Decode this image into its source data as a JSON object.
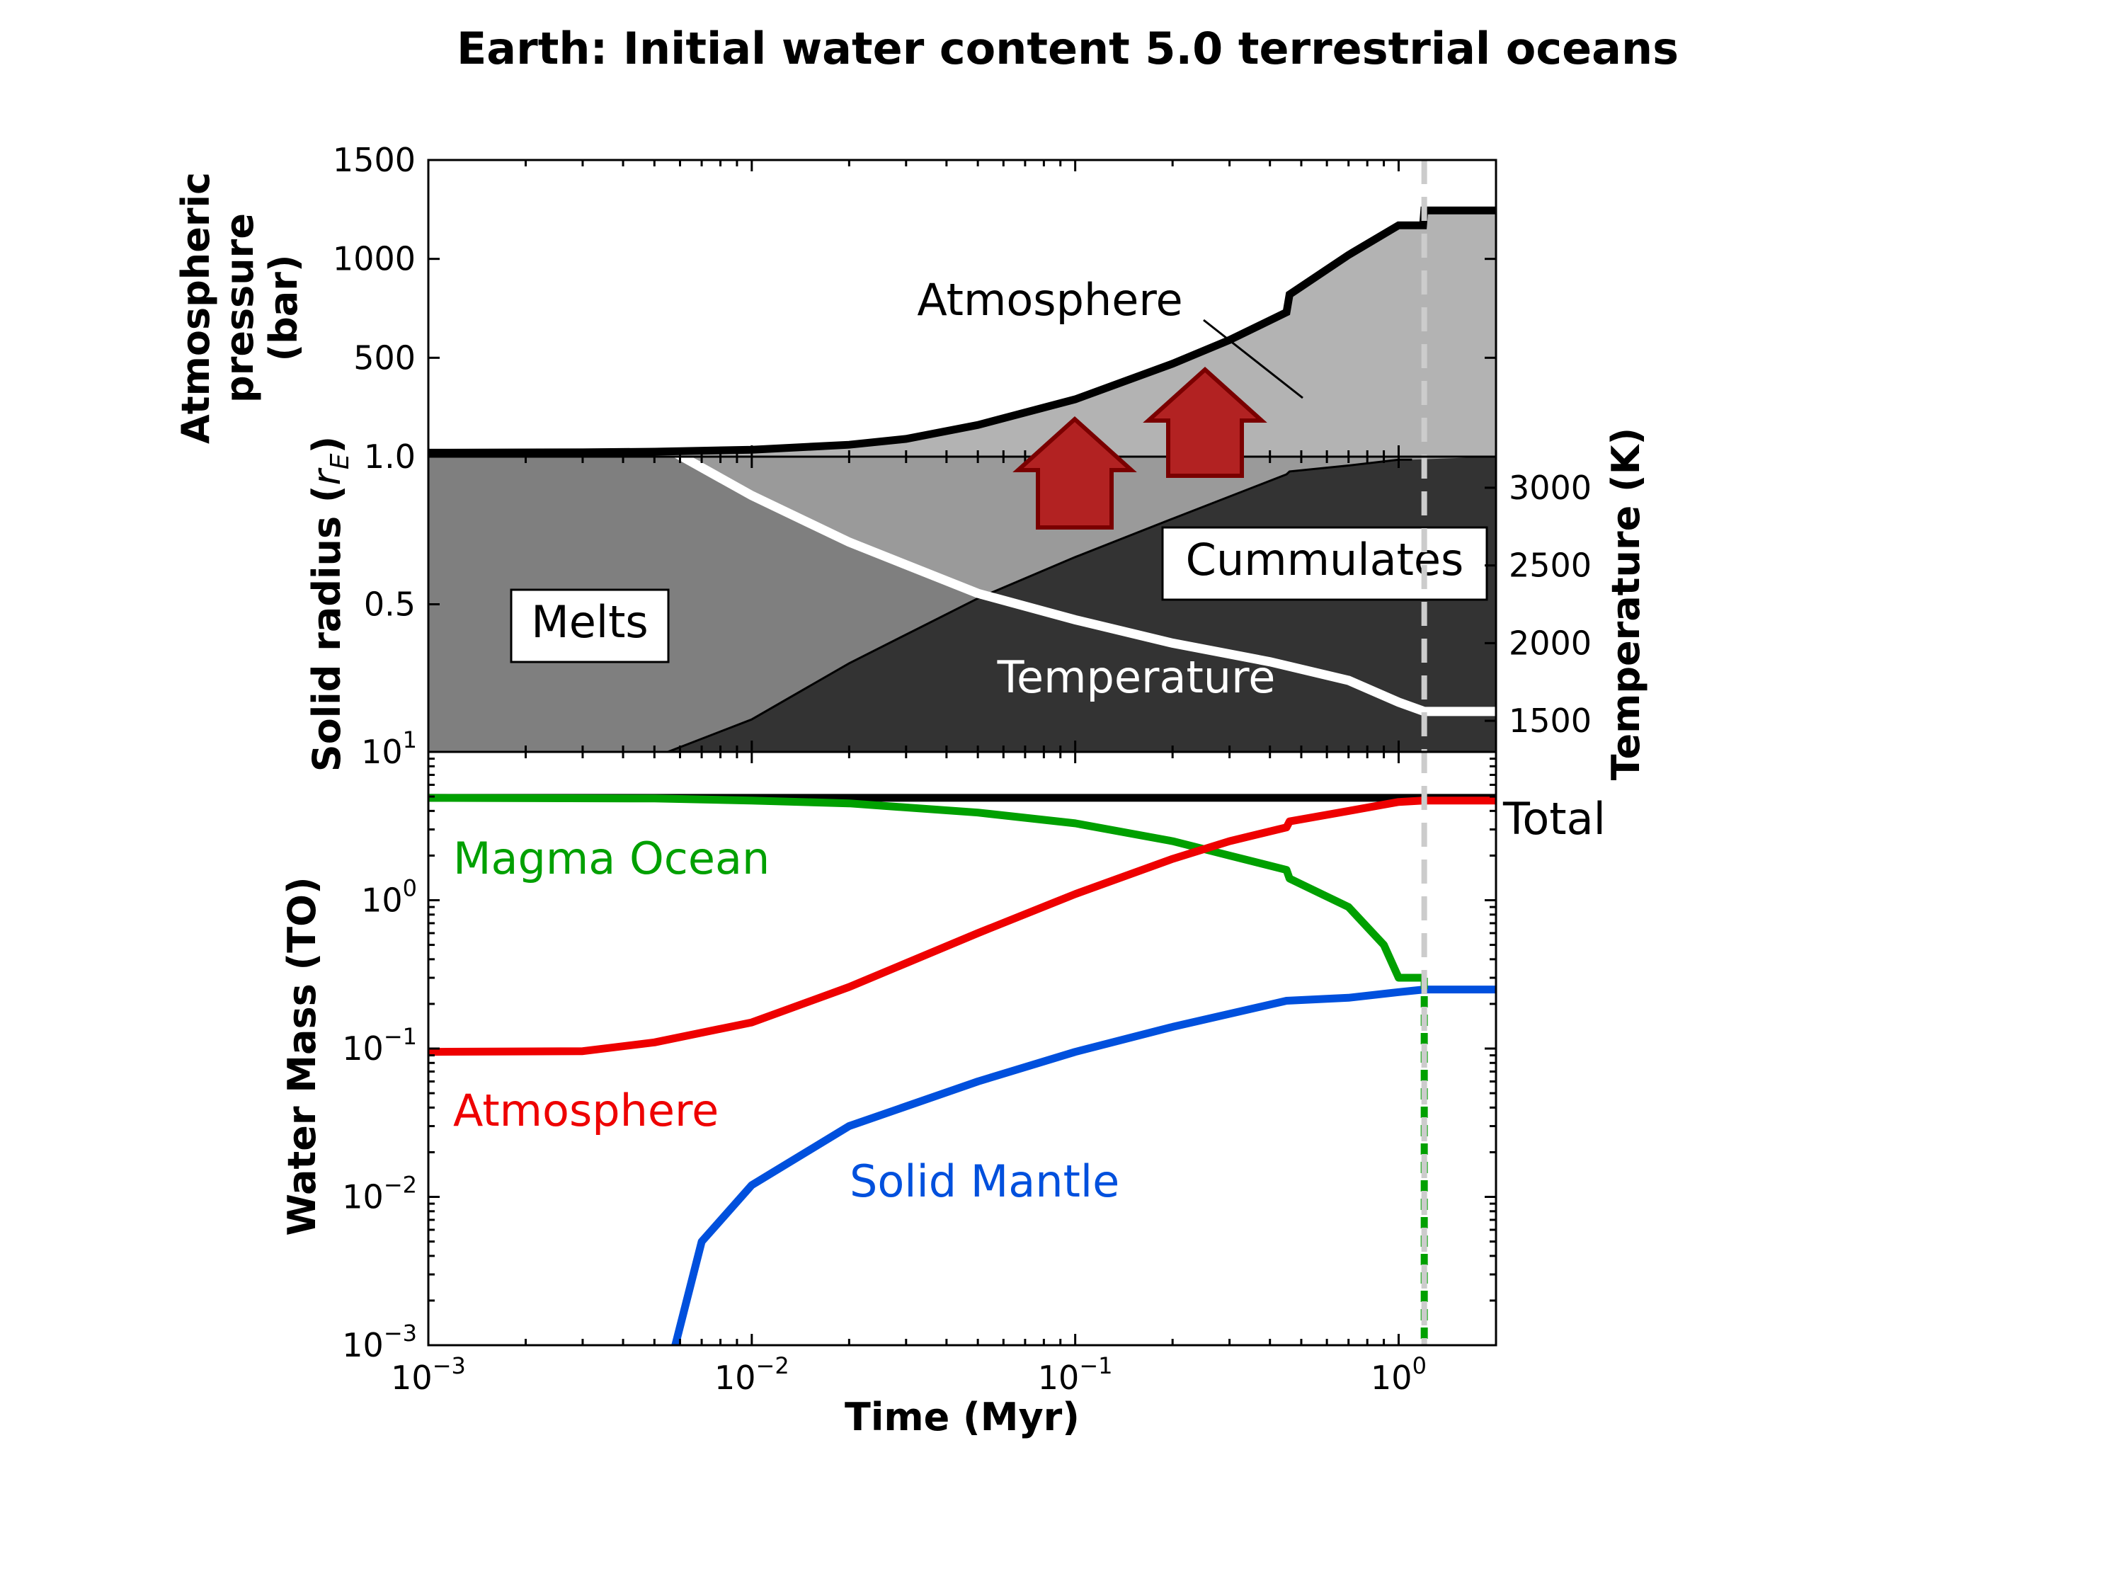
{
  "title": "Earth: Initial water content 5.0 terrestrial oceans",
  "colors": {
    "atm_fill": "#b3b3b3",
    "melt_fill": "#7f7f7f",
    "cumm_fill": "#333333",
    "mid_fill": "#9a9a9a",
    "atm_line": "#000000",
    "temp_line": "#ffffff",
    "magma": "#00a000",
    "atmosphere": "#ee0000",
    "solid_mantle": "#0050dd",
    "total": "#000000",
    "arrow": "#b22222",
    "arrow_edge": "#7a0000",
    "end_marker": "#cccccc"
  },
  "chart_data": [
    {
      "type": "area",
      "panel": "pressure",
      "ylabel": [
        "Atmospheric",
        "pressure",
        "(bar)"
      ],
      "xscale": "log",
      "xlim": [
        0.001,
        2.0
      ],
      "ylim": [
        0,
        1500
      ],
      "yticks": [
        "1500",
        "1000",
        "500"
      ],
      "annotation": "Atmosphere",
      "series": [
        {
          "x": [
            0.001,
            0.003,
            0.005,
            0.01,
            0.02,
            0.03,
            0.05,
            0.1,
            0.2,
            0.3,
            0.45,
            0.46,
            0.7,
            1.0,
            1.19,
            1.2,
            2.0
          ],
          "y": [
            20,
            22,
            25,
            35,
            60,
            90,
            160,
            290,
            470,
            590,
            730,
            820,
            1020,
            1170,
            1170,
            1245,
            1245
          ]
        }
      ]
    },
    {
      "type": "area",
      "panel": "radius",
      "ylabel": "Solid radius (r_E)",
      "ylabel_parts": [
        "Solid radius (",
        "r",
        "E",
        ")"
      ],
      "y2label": "Temperature (K)",
      "xscale": "log",
      "xlim": [
        0.001,
        2.0
      ],
      "ylim": [
        0.0,
        1.0
      ],
      "yticks": [
        "1.0",
        "0.5"
      ],
      "y2lim": [
        1300,
        3200
      ],
      "y2ticks": [
        "3000",
        "2500",
        "2000",
        "1500"
      ],
      "labels": [
        "Melts",
        "Cummulates",
        "Temperature"
      ],
      "series": [
        {
          "name": "solid_radius",
          "x": [
            0.0055,
            0.01,
            0.02,
            0.05,
            0.1,
            0.2,
            0.45,
            0.46,
            0.7,
            1.0,
            1.1
          ],
          "y": [
            0.0,
            0.11,
            0.3,
            0.52,
            0.66,
            0.79,
            0.94,
            0.95,
            0.97,
            0.99,
            0.99
          ]
        },
        {
          "name": "temperature",
          "x": [
            0.005,
            0.01,
            0.02,
            0.05,
            0.1,
            0.2,
            0.4,
            0.7,
            1.0,
            1.2,
            2.0
          ],
          "y": [
            3300,
            2950,
            2650,
            2320,
            2150,
            2000,
            1880,
            1760,
            1620,
            1560,
            1560
          ]
        }
      ]
    },
    {
      "type": "line",
      "panel": "water",
      "ylabel": "Water Mass (TO)",
      "xlabel": "Time (Myr)",
      "xscale": "log",
      "yscale": "log",
      "xlim": [
        0.001,
        2.0
      ],
      "ylim": [
        0.001,
        10.0
      ],
      "xticks": [
        {
          "base": "10",
          "exp": "−3"
        },
        {
          "base": "10",
          "exp": "−2"
        },
        {
          "base": "10",
          "exp": "−1"
        },
        {
          "base": "10",
          "exp": "0"
        }
      ],
      "yticks": [
        {
          "base": "10",
          "exp": "1"
        },
        {
          "base": "10",
          "exp": "0"
        },
        {
          "base": "10",
          "exp": "−1"
        },
        {
          "base": "10",
          "exp": "−2"
        },
        {
          "base": "10",
          "exp": "−3"
        }
      ],
      "series": [
        {
          "name": "Total",
          "x": [
            0.001,
            2.0
          ],
          "y": [
            4.9,
            4.9
          ]
        },
        {
          "name": "Magma Ocean",
          "x": [
            0.001,
            0.005,
            0.01,
            0.02,
            0.05,
            0.1,
            0.2,
            0.3,
            0.45,
            0.46,
            0.7,
            0.9,
            1.0,
            1.19
          ],
          "y": [
            4.9,
            4.85,
            4.7,
            4.5,
            3.9,
            3.3,
            2.5,
            2.0,
            1.6,
            1.4,
            0.9,
            0.5,
            0.3,
            0.3
          ]
        },
        {
          "name": "Atmosphere",
          "x": [
            0.001,
            0.003,
            0.005,
            0.01,
            0.02,
            0.05,
            0.1,
            0.2,
            0.3,
            0.45,
            0.46,
            0.7,
            1.0,
            1.19,
            1.2,
            2.0
          ],
          "y": [
            0.095,
            0.096,
            0.11,
            0.15,
            0.26,
            0.6,
            1.1,
            1.9,
            2.5,
            3.1,
            3.4,
            4.0,
            4.6,
            4.7,
            4.7,
            4.7
          ]
        },
        {
          "name": "Solid Mantle",
          "x": [
            0.0058,
            0.007,
            0.01,
            0.02,
            0.05,
            0.1,
            0.2,
            0.45,
            0.7,
            1.0,
            1.2,
            2.0
          ],
          "y": [
            0.001,
            0.005,
            0.012,
            0.03,
            0.06,
            0.095,
            0.14,
            0.21,
            0.22,
            0.24,
            0.25,
            0.25
          ]
        }
      ]
    }
  ]
}
